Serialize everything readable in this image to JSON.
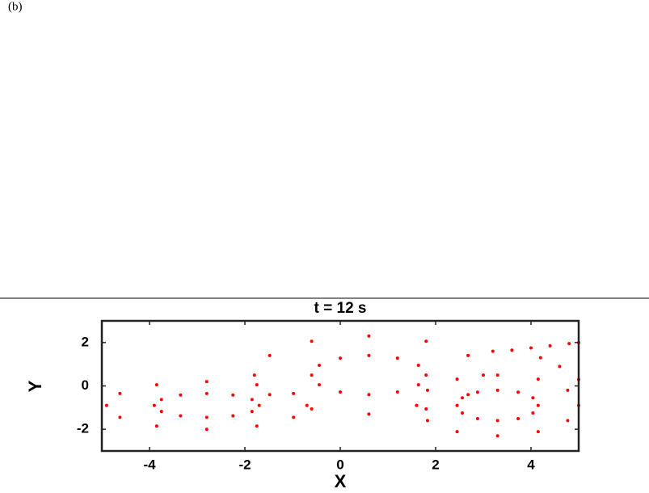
{
  "chart_data": {
    "type": "scatter",
    "panel_label": "(b)",
    "title": "t = 12 s",
    "x_label": "X",
    "y_label": "Y",
    "color": "#ff0000",
    "xlim": [
      -5,
      5
    ],
    "ylim": [
      -3,
      3
    ],
    "xticks": [
      -4,
      -2,
      0,
      2,
      4
    ],
    "yticks": [
      -2,
      0,
      2
    ],
    "x": [
      -0.7,
      -0.98,
      -1.75,
      -2.8,
      -3.85,
      -4.62,
      -4.9,
      -4.62,
      -3.85,
      -2.8,
      -1.75,
      -0.98,
      -1.7,
      -1.85,
      -2.25,
      -2.8,
      -3.35,
      -3.75,
      -3.9,
      -3.75,
      -3.35,
      -2.8,
      -2.25,
      -1.85,
      3.0,
      2.68,
      1.8,
      0.6,
      -0.6,
      -1.48,
      -1.8,
      -1.48,
      -0.6,
      0.6,
      1.8,
      2.68,
      1.8,
      1.64,
      1.2,
      0.6,
      0,
      -0.44,
      -0.6,
      -0.44,
      0,
      0.6,
      1.2,
      1.64,
      5.0,
      4.77,
      4.15,
      3.3,
      2.45,
      1.83,
      1.6,
      1.83,
      2.45,
      3.3,
      4.15,
      4.77,
      4.15,
      4.04,
      3.73,
      3.3,
      2.88,
      2.56,
      2.45,
      2.56,
      2.88,
      3.3,
      3.73,
      4.04,
      3.2,
      3.6,
      4.0,
      4.4,
      4.8,
      5.0,
      4.2,
      4.6,
      5.0
    ],
    "values": [
      -0.9,
      -0.35,
      0.05,
      0.2,
      0.05,
      -0.35,
      -0.9,
      -1.45,
      -1.85,
      -2.0,
      -1.85,
      -1.45,
      -0.9,
      -0.63,
      -0.42,
      -0.35,
      -0.42,
      -0.63,
      -0.9,
      -1.18,
      -1.38,
      -1.45,
      -1.38,
      -1.18,
      0.5,
      1.4,
      2.06,
      2.3,
      2.06,
      1.4,
      0.5,
      -0.4,
      -1.06,
      -1.3,
      -1.06,
      -0.4,
      0.5,
      0.95,
      1.28,
      1.4,
      1.28,
      0.95,
      0.5,
      0.05,
      -0.28,
      -0.4,
      -0.28,
      0.05,
      -0.9,
      -0.2,
      0.31,
      0.5,
      0.31,
      -0.2,
      -0.9,
      -1.6,
      -2.11,
      -2.3,
      -2.11,
      -1.6,
      -0.9,
      -0.55,
      -0.29,
      -0.2,
      -0.29,
      -0.55,
      -0.9,
      -1.25,
      -1.51,
      -1.6,
      -1.51,
      -1.25,
      1.6,
      1.65,
      1.75,
      1.85,
      1.95,
      2.0,
      1.3,
      0.9,
      0.3
    ]
  }
}
